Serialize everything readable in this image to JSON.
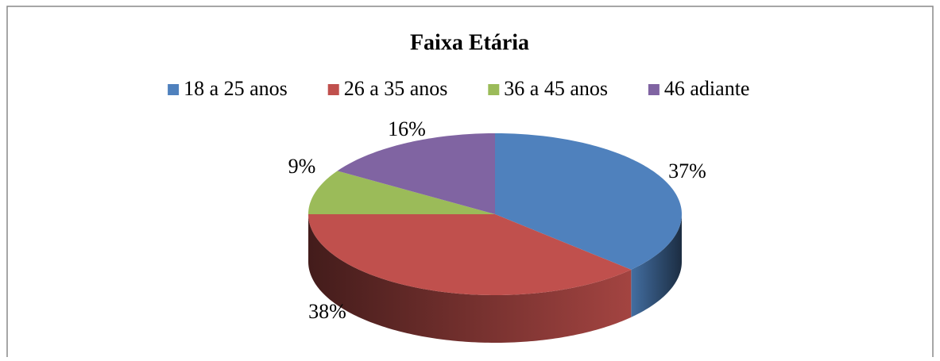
{
  "chart_data": {
    "type": "pie",
    "title": "Faixa Etária",
    "categories": [
      "18 a 25 anos",
      "26 a 35 anos",
      "36 a 45 anos",
      "46 adiante"
    ],
    "values": [
      37,
      38,
      9,
      16
    ],
    "value_labels": [
      "37%",
      "38%",
      "9%",
      "16%"
    ],
    "colors": [
      "#4f81bd",
      "#c0504d",
      "#9bbb59",
      "#8064a2"
    ],
    "legend": "top"
  }
}
